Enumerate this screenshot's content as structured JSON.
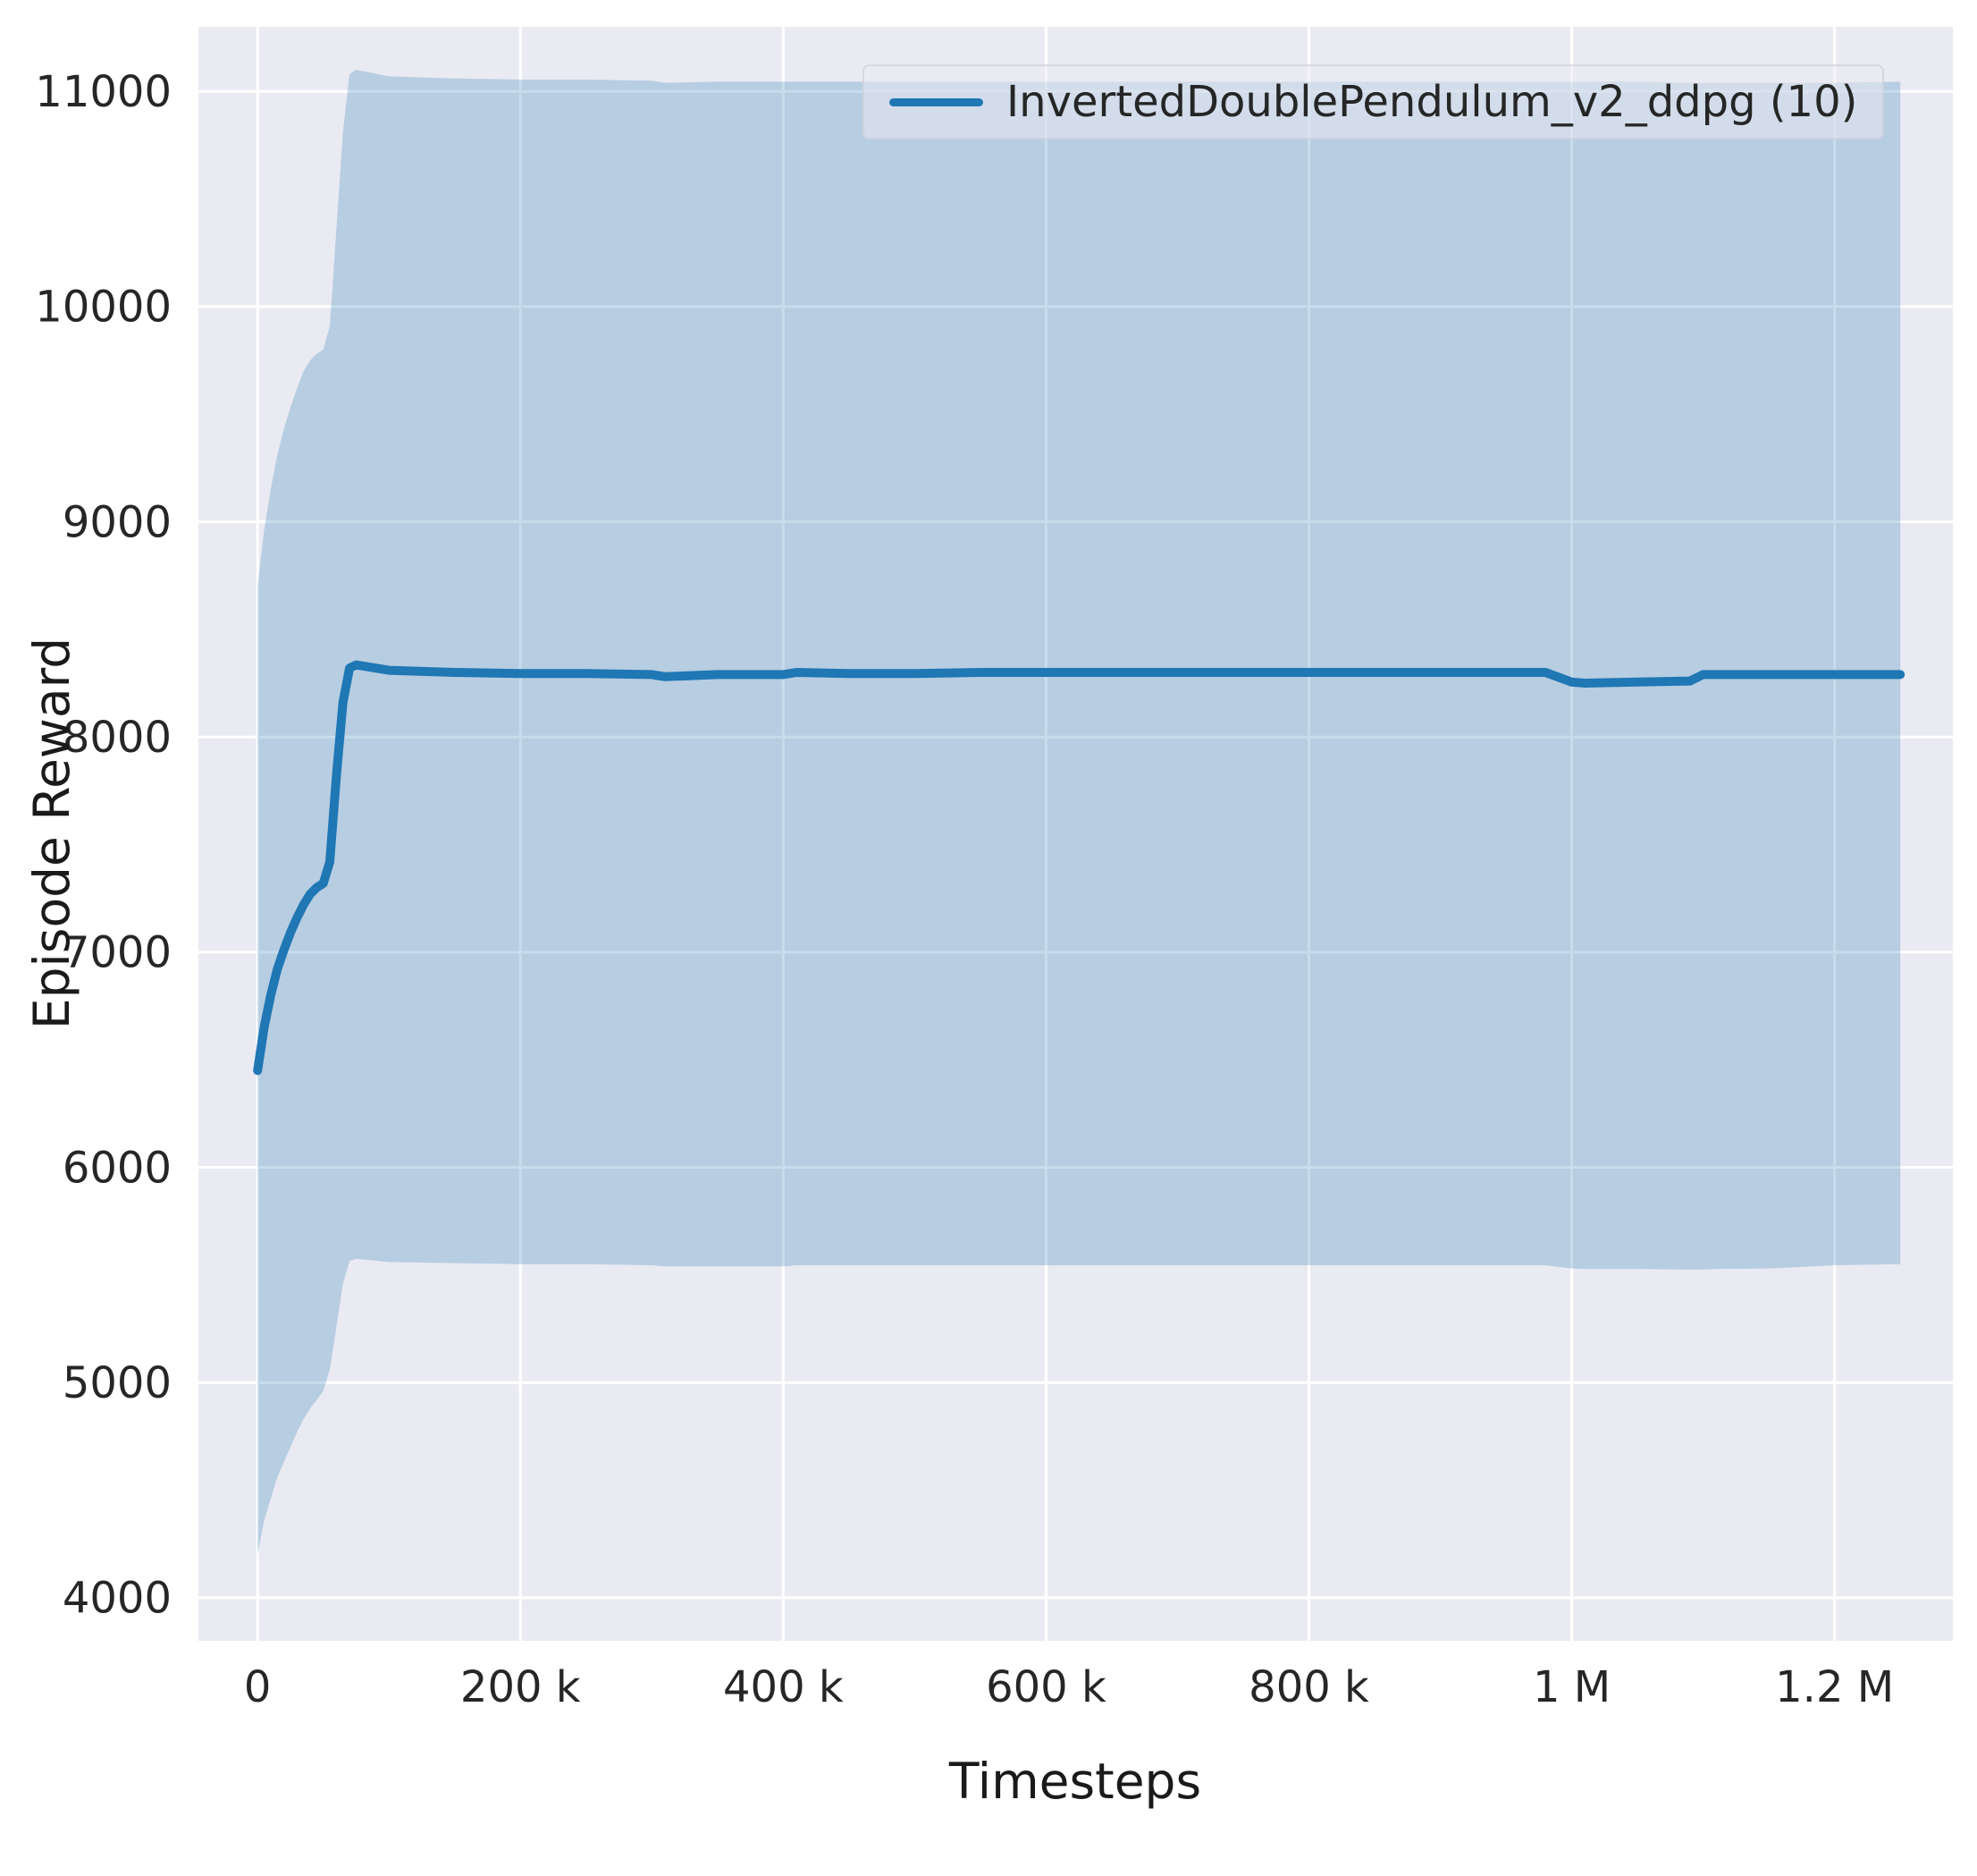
{
  "figure": {
    "background": "#ffffff"
  },
  "chart_data": {
    "type": "line",
    "title": "",
    "xlabel": "Timesteps",
    "ylabel": "Episode Reward",
    "grid": true,
    "legend_position": "upper center-right",
    "xlim": [
      -45000,
      1290000
    ],
    "ylim": [
      3800,
      11300
    ],
    "xticks": {
      "values": [
        0,
        200000,
        400000,
        600000,
        800000,
        1000000,
        1200000
      ],
      "labels": [
        "0",
        "200 k",
        "400 k",
        "600 k",
        "800 k",
        "1 M",
        "1.2 M"
      ]
    },
    "yticks": {
      "values": [
        4000,
        5000,
        6000,
        7000,
        8000,
        9000,
        10000,
        11000
      ],
      "labels": [
        "4000",
        "5000",
        "6000",
        "7000",
        "8000",
        "9000",
        "10000",
        "11000"
      ]
    },
    "colors": {
      "plot_bg": "#eaeaf2",
      "grid": "#ffffff",
      "line": "#1f77b4",
      "band": "rgba(31,119,180,0.25)",
      "text": "#262626"
    },
    "series": [
      {
        "name": "InvertedDoublePendulum_v2_ddpg (10)",
        "x": [
          0,
          5000,
          10000,
          15000,
          20000,
          25000,
          30000,
          35000,
          40000,
          45000,
          50000,
          55000,
          60000,
          65000,
          70000,
          75000,
          100000,
          150000,
          200000,
          250000,
          300000,
          310000,
          350000,
          400000,
          410000,
          450000,
          500000,
          550000,
          600000,
          650000,
          700000,
          750000,
          800000,
          850000,
          900000,
          950000,
          980000,
          1000000,
          1010000,
          1050000,
          1090000,
          1100000,
          1110000,
          1150000,
          1200000,
          1250000
        ],
        "mean": [
          6450,
          6650,
          6800,
          6920,
          7010,
          7090,
          7160,
          7220,
          7270,
          7300,
          7320,
          7420,
          7820,
          8160,
          8320,
          8335,
          8310,
          8300,
          8295,
          8295,
          8290,
          8280,
          8290,
          8290,
          8300,
          8295,
          8295,
          8300,
          8300,
          8300,
          8300,
          8300,
          8300,
          8300,
          8300,
          8300,
          8300,
          8255,
          8250,
          8255,
          8260,
          8290,
          8290,
          8290,
          8290,
          8290
        ],
        "band_lower": [
          4200,
          4360,
          4460,
          4560,
          4630,
          4700,
          4770,
          4830,
          4880,
          4920,
          4960,
          5060,
          5260,
          5460,
          5565,
          5575,
          5560,
          5555,
          5550,
          5550,
          5545,
          5540,
          5540,
          5540,
          5545,
          5545,
          5545,
          5545,
          5545,
          5545,
          5545,
          5545,
          5545,
          5545,
          5545,
          5545,
          5545,
          5530,
          5528,
          5528,
          5525,
          5525,
          5528,
          5530,
          5545,
          5550
        ],
        "band_upper": [
          8700,
          8960,
          9150,
          9310,
          9430,
          9530,
          9620,
          9700,
          9750,
          9780,
          9800,
          9910,
          10360,
          10810,
          11080,
          11100,
          11070,
          11060,
          11055,
          11055,
          11050,
          11040,
          11045,
          11045,
          11045,
          11045,
          11045,
          11045,
          11045,
          11045,
          11045,
          11045,
          11045,
          11045,
          11045,
          11045,
          11045,
          11045,
          11045,
          11045,
          11040,
          11040,
          11040,
          11040,
          11040,
          11045
        ]
      }
    ]
  }
}
